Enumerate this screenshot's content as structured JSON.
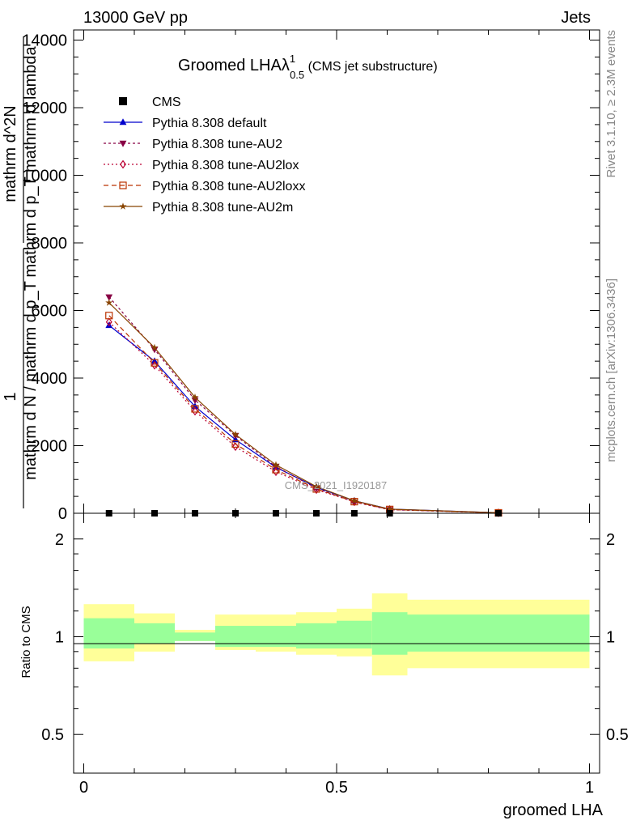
{
  "header": {
    "left": "13000 GeV pp",
    "right": "Jets"
  },
  "side_labels": {
    "rivet": "Rivet 3.1.10, ≥ 2.3M events",
    "mcplots": "mcplots.cern.ch [arXiv:1306.3436]"
  },
  "title": {
    "main": "Groomed LHAλ",
    "sup": "1",
    "sub": "0.5",
    "suffix": " (CMS jet substructure)"
  },
  "watermark": "CMS_2021_I1920187",
  "ylabel_main": {
    "frac_num": "1",
    "frac_den": "mathrm d N / mathrm d p_T",
    "dn": "mathrm d^2N",
    "dden": "mathrm d p_T mathrm d lambda"
  },
  "ylabel_ratio": "Ratio to CMS",
  "xlabel": "groomed LHA",
  "colors": {
    "band_inner": "#99ff99",
    "band_outer": "#ffff99",
    "cms": "#000000"
  },
  "chart_data": {
    "type": "line",
    "x_range": [
      -0.02,
      1.02
    ],
    "main_ylim": [
      0,
      14300
    ],
    "ratio_ylim": [
      0.38,
      2.4
    ],
    "main_yticks": [
      0,
      2000,
      4000,
      6000,
      8000,
      10000,
      12000,
      14000
    ],
    "main_ytick_labels": [
      "0",
      "2000",
      "4000",
      "6000",
      "8000",
      "10000",
      "12000",
      "14000"
    ],
    "ratio_yticks": [
      0.5,
      1,
      2
    ],
    "ratio_ytick_labels": [
      "0.5",
      "1",
      "2"
    ],
    "xticks": [
      0,
      0.5,
      1
    ],
    "xtick_labels": [
      "0",
      "0.5",
      "1"
    ],
    "bins": [
      [
        0,
        0.1
      ],
      [
        0.1,
        0.18
      ],
      [
        0.18,
        0.26
      ],
      [
        0.26,
        0.34
      ],
      [
        0.34,
        0.42
      ],
      [
        0.42,
        0.5
      ],
      [
        0.5,
        0.57
      ],
      [
        0.57,
        0.64
      ],
      [
        0.64,
        1.0
      ]
    ],
    "x": [
      0.05,
      0.14,
      0.22,
      0.3,
      0.38,
      0.46,
      0.535,
      0.605,
      0.82
    ],
    "cms": [
      0,
      0,
      0,
      0,
      0,
      0,
      0,
      0,
      0
    ],
    "series": [
      {
        "name": "CMS",
        "marker": "square",
        "color": "#000000",
        "dash": "none",
        "values": [
          0,
          0,
          0,
          0,
          0,
          0,
          0,
          0,
          0
        ]
      },
      {
        "name": "Pythia 8.308 default",
        "marker": "triangle-up",
        "color": "#0000cc",
        "dash": "none",
        "values": [
          5560,
          4500,
          3160,
          2180,
          1360,
          770,
          370,
          125,
          15
        ]
      },
      {
        "name": "Pythia 8.308 tune-AU2",
        "marker": "triangle-down",
        "color": "#880044",
        "dash": "3,3",
        "values": [
          6400,
          4850,
          3350,
          2300,
          1380,
          740,
          330,
          105,
          12
        ]
      },
      {
        "name": "Pythia 8.308 tune-AU2lox",
        "marker": "diamond",
        "color": "#bb0033",
        "dash": "2,3",
        "values": [
          5660,
          4380,
          3020,
          1970,
          1230,
          700,
          340,
          110,
          12
        ]
      },
      {
        "name": "Pythia 8.308 tune-AU2loxx",
        "marker": "square-open",
        "color": "#bb3300",
        "dash": "6,4",
        "values": [
          5850,
          4450,
          3090,
          2050,
          1290,
          720,
          345,
          112,
          13
        ]
      },
      {
        "name": "Pythia 8.308 tune-AU2m",
        "marker": "star",
        "color": "#884400",
        "dash": "none",
        "values": [
          6230,
          4900,
          3430,
          2330,
          1430,
          790,
          370,
          122,
          14
        ]
      }
    ],
    "ratio_bands": {
      "inner_low": [
        0.92,
        0.95,
        0.97,
        0.93,
        0.93,
        0.92,
        0.92,
        0.88,
        0.9
      ],
      "inner_high": [
        1.14,
        1.1,
        1.03,
        1.08,
        1.08,
        1.1,
        1.12,
        1.19,
        1.17
      ],
      "outer_low": [
        0.84,
        0.9,
        0.97,
        0.91,
        0.9,
        0.88,
        0.87,
        0.76,
        0.8
      ],
      "outer_high": [
        1.26,
        1.18,
        1.05,
        1.17,
        1.17,
        1.19,
        1.22,
        1.36,
        1.3
      ]
    },
    "legend_position": "top-left"
  }
}
